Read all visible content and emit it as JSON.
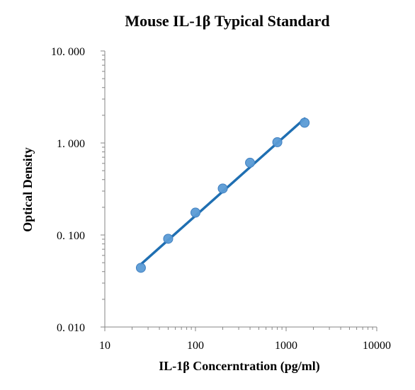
{
  "chart_data": {
    "type": "scatter",
    "title": "Mouse IL-1β Typical Standard",
    "xlabel": "IL-1β Concerntration (pg/ml)",
    "ylabel": "Optical Density",
    "xscale": "log",
    "yscale": "log",
    "xlim": [
      10,
      10000
    ],
    "ylim": [
      0.01,
      10
    ],
    "xticks": [
      10,
      100,
      1000,
      10000
    ],
    "xtick_labels": [
      "10",
      "100",
      "1000",
      "10000"
    ],
    "yticks": [
      0.01,
      0.1,
      1,
      10
    ],
    "ytick_labels": [
      "0. 010",
      "0. 100",
      "1. 000",
      "10. 000"
    ],
    "grid": false,
    "legend": "none",
    "series": [
      {
        "style": "points",
        "color": "#5B9BD5",
        "x": [
          25,
          50,
          100,
          200,
          400,
          800,
          1600
        ],
        "y": [
          0.044,
          0.091,
          0.175,
          0.32,
          0.61,
          1.02,
          1.66
        ]
      },
      {
        "style": "fit-line",
        "color": "#1F6FB2",
        "x": [
          25,
          1600
        ],
        "y": [
          0.048,
          1.84
        ]
      }
    ]
  }
}
